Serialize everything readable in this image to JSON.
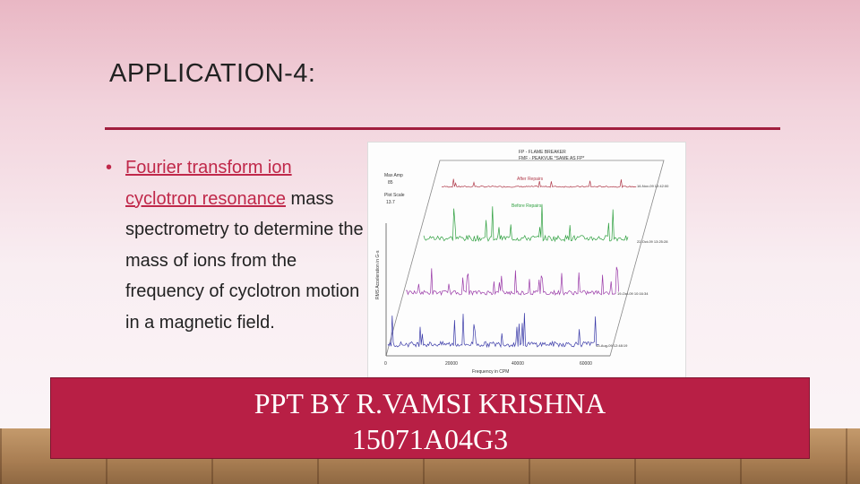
{
  "slide": {
    "title": "APPLICATION-4:",
    "bullet": {
      "marker": "•",
      "link_text": "Fourier transform ion cyclotron resonance",
      "rest_text": " mass spectrometry to determine the mass of ions from the frequency of cyclotron motion in a magnetic field."
    },
    "banner": {
      "line1": "PPT BY R.VAMSI KRISHNA",
      "line2": "15071A04G3"
    },
    "colors": {
      "accent": "#b81f45",
      "link": "#c0284a",
      "rule": "#a11f3e"
    }
  },
  "figure": {
    "legend_line1": "FP - FLAME BREAKER",
    "legend_line2": "FMF - PEAKVUE *SAME AS FP*",
    "max_amp_label": "Max Amp",
    "max_amp_value": "85",
    "plot_scale_label": "Plot Scale",
    "plot_scale_value": "13.7",
    "y_axis_label": "RMS Acceleration in G-s",
    "after_repairs": "After Repairs",
    "before_repairs": "Before Repairs",
    "x_axis_label": "Frequency in CPM",
    "x_ticks": [
      "0",
      "20000",
      "40000",
      "60000"
    ],
    "trace_dates": [
      "16-Nov-09 12:42:00",
      "22-Oct-09 13:25:28",
      "19-Oct-09 10:16:34",
      "13-Aug-09 12:48:19"
    ],
    "trace_colors": [
      "#b03a4a",
      "#2fa040",
      "#9a3aa8",
      "#3a3aa8"
    ]
  }
}
